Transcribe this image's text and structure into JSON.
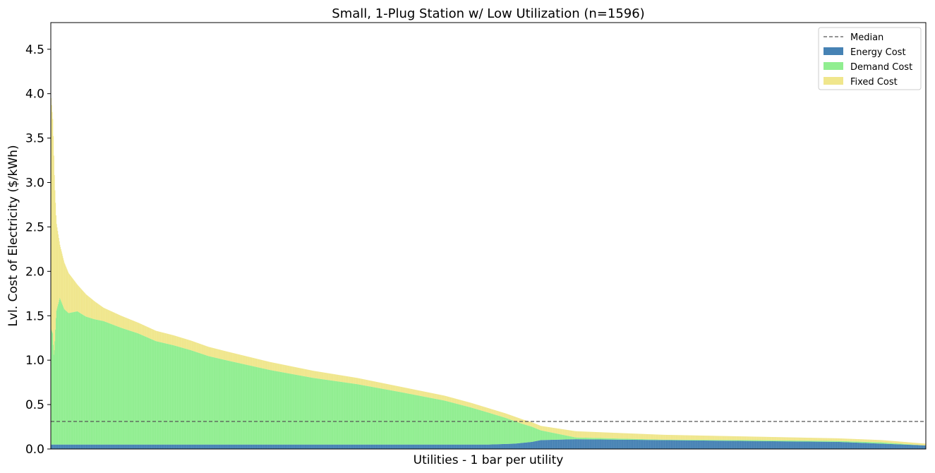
{
  "chart_data": {
    "type": "bar",
    "stacked": true,
    "title": "Small, 1-Plug Station w/ Low Utilization (n=1596)",
    "xlabel": "Utilities - 1 bar per utility",
    "ylabel": "Lvl. Cost of Electricity ($/kWh)",
    "n_bars": 1596,
    "ylim": [
      0,
      4.8
    ],
    "yticks": [
      0.0,
      0.5,
      1.0,
      1.5,
      2.0,
      2.5,
      3.0,
      3.5,
      4.0,
      4.5
    ],
    "ytick_labels": [
      "0.0",
      "0.5",
      "1.0",
      "1.5",
      "2.0",
      "2.5",
      "3.0",
      "3.5",
      "4.0",
      "4.5"
    ],
    "median": 0.31,
    "legend_position": "top-right",
    "legend": [
      "Median",
      "Energy Cost",
      "Demand Cost",
      "Fixed Cost"
    ],
    "colors": {
      "energy": "#4682b4",
      "demand": "#90ee90",
      "fixed": "#f0e68c",
      "median": "#555555"
    },
    "series_note": "Bars sorted by total cost (descending); values approximated as a sampled curve (rank fraction -> $/kWh).",
    "total_curve": [
      [
        0.0,
        3.95
      ],
      [
        0.002,
        3.7
      ],
      [
        0.004,
        3.0
      ],
      [
        0.006,
        2.55
      ],
      [
        0.01,
        2.3
      ],
      [
        0.015,
        2.1
      ],
      [
        0.02,
        1.98
      ],
      [
        0.03,
        1.85
      ],
      [
        0.04,
        1.74
      ],
      [
        0.05,
        1.66
      ],
      [
        0.06,
        1.59
      ],
      [
        0.08,
        1.5
      ],
      [
        0.1,
        1.42
      ],
      [
        0.12,
        1.33
      ],
      [
        0.14,
        1.28
      ],
      [
        0.16,
        1.22
      ],
      [
        0.18,
        1.15
      ],
      [
        0.2,
        1.1
      ],
      [
        0.25,
        0.98
      ],
      [
        0.3,
        0.88
      ],
      [
        0.35,
        0.8
      ],
      [
        0.4,
        0.7
      ],
      [
        0.45,
        0.6
      ],
      [
        0.48,
        0.52
      ],
      [
        0.5,
        0.46
      ],
      [
        0.52,
        0.4
      ],
      [
        0.54,
        0.33
      ],
      [
        0.55,
        0.3
      ],
      [
        0.56,
        0.26
      ],
      [
        0.6,
        0.2
      ],
      [
        0.65,
        0.18
      ],
      [
        0.7,
        0.16
      ],
      [
        0.8,
        0.14
      ],
      [
        0.9,
        0.12
      ],
      [
        0.95,
        0.1
      ],
      [
        1.0,
        0.06
      ]
    ],
    "energy_curve": [
      [
        0.0,
        0.05
      ],
      [
        0.1,
        0.05
      ],
      [
        0.3,
        0.05
      ],
      [
        0.5,
        0.05
      ],
      [
        0.53,
        0.06
      ],
      [
        0.55,
        0.08
      ],
      [
        0.56,
        0.1
      ],
      [
        0.6,
        0.11
      ],
      [
        0.7,
        0.1
      ],
      [
        0.8,
        0.09
      ],
      [
        0.9,
        0.08
      ],
      [
        0.95,
        0.06
      ],
      [
        1.0,
        0.04
      ]
    ],
    "fixed_curve": [
      [
        0.0,
        2.6
      ],
      [
        0.003,
        2.3
      ],
      [
        0.006,
        1.0
      ],
      [
        0.01,
        0.6
      ],
      [
        0.03,
        0.3
      ],
      [
        0.06,
        0.15
      ],
      [
        0.1,
        0.12
      ],
      [
        0.2,
        0.1
      ],
      [
        0.3,
        0.08
      ],
      [
        0.4,
        0.06
      ],
      [
        0.5,
        0.05
      ],
      [
        0.56,
        0.05
      ],
      [
        0.6,
        0.07
      ],
      [
        0.8,
        0.04
      ],
      [
        1.0,
        0.02
      ]
    ]
  }
}
